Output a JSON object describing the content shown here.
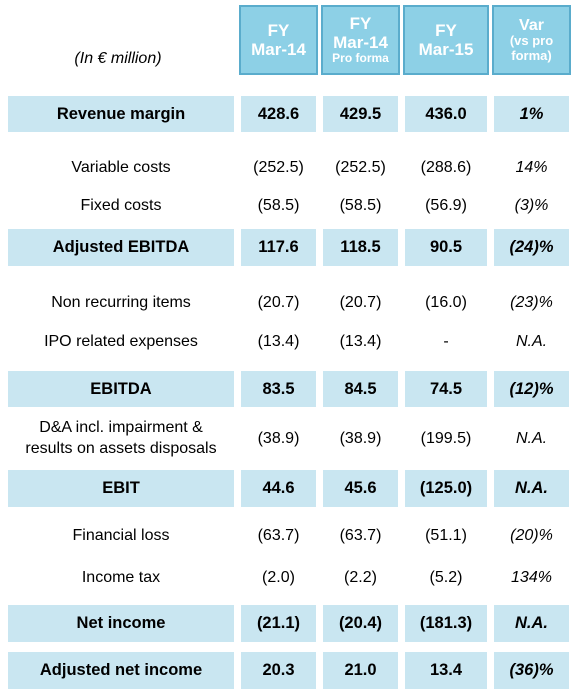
{
  "unit_label": "(In € million)",
  "headers": [
    {
      "lines": [
        "FY",
        "Mar-14",
        ""
      ]
    },
    {
      "lines": [
        "FY",
        "Mar-14",
        "Pro forma"
      ]
    },
    {
      "lines": [
        "FY",
        "Mar-15",
        ""
      ]
    },
    {
      "lines": [
        "Var",
        "(vs pro",
        "forma)"
      ]
    }
  ],
  "rows": [
    {
      "label": "Revenue margin",
      "values": [
        "428.6",
        "429.5",
        "436.0",
        "1%"
      ],
      "highlight": true
    },
    {
      "label": "Variable costs",
      "values": [
        "(252.5)",
        "(252.5)",
        "(288.6)",
        "14%"
      ],
      "highlight": false
    },
    {
      "label": "Fixed costs",
      "values": [
        "(58.5)",
        "(58.5)",
        "(56.9)",
        "(3)%"
      ],
      "highlight": false
    },
    {
      "label": "Adjusted EBITDA",
      "values": [
        "117.6",
        "118.5",
        "90.5",
        "(24)%"
      ],
      "highlight": true
    },
    {
      "label": "Non recurring items",
      "values": [
        "(20.7)",
        "(20.7)",
        "(16.0)",
        "(23)%"
      ],
      "highlight": false
    },
    {
      "label": "IPO related expenses",
      "values": [
        "(13.4)",
        "(13.4)",
        "-",
        "N.A."
      ],
      "highlight": false
    },
    {
      "label": "EBITDA",
      "values": [
        "83.5",
        "84.5",
        "74.5",
        "(12)%"
      ],
      "highlight": true
    },
    {
      "label": "D&A incl. impairment & results on assets disposals",
      "label_lines": [
        "D&A incl. impairment &",
        "results on assets disposals"
      ],
      "values": [
        "(38.9)",
        "(38.9)",
        "(199.5)",
        "N.A."
      ],
      "highlight": false
    },
    {
      "label": "EBIT",
      "values": [
        "44.6",
        "45.6",
        "(125.0)",
        "N.A."
      ],
      "highlight": true
    },
    {
      "label": "Financial loss",
      "values": [
        "(63.7)",
        "(63.7)",
        "(51.1)",
        "(20)%"
      ],
      "highlight": false
    },
    {
      "label": "Income tax",
      "values": [
        "(2.0)",
        "(2.2)",
        "(5.2)",
        "134%"
      ],
      "highlight": false
    },
    {
      "label": "Net income",
      "values": [
        "(21.1)",
        "(20.4)",
        "(181.3)",
        "N.A."
      ],
      "highlight": true
    },
    {
      "label": "Adjusted net income",
      "values": [
        "20.3",
        "21.0",
        "13.4",
        "(36)%"
      ],
      "highlight": true
    }
  ],
  "colors": {
    "header_fill": "#8dd0e6",
    "header_border": "#5aaccc",
    "row_highlight": "#c9e6f1"
  }
}
